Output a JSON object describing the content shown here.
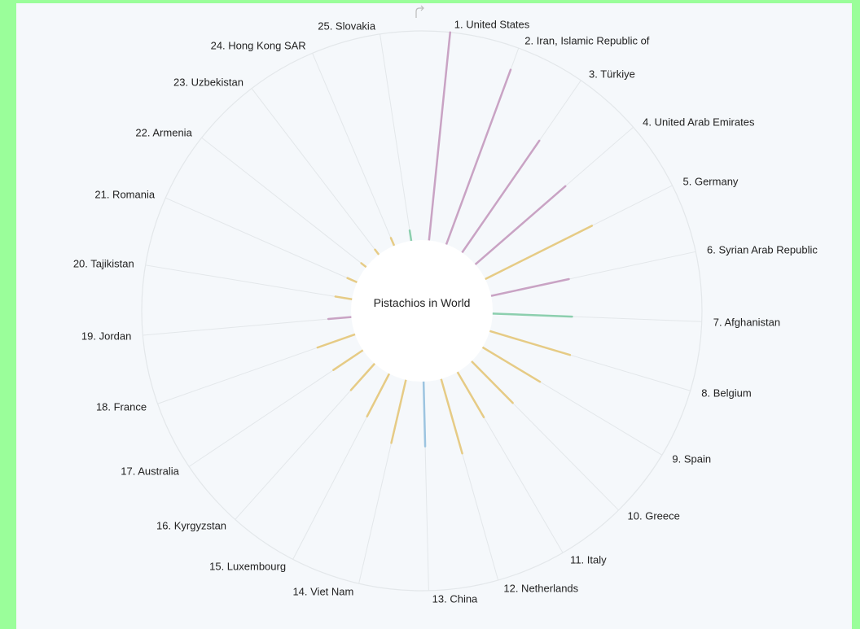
{
  "chart_data": {
    "type": "radial-bar",
    "title": "Pistachios in World",
    "categories": [
      "1. United States",
      "2. Iran, Islamic Republic of",
      "3. Türkiye",
      "4. United Arab Emirates",
      "5. Germany",
      "6. Syrian Arab Republic",
      "7. Afghanistan",
      "8. Belgium",
      "9. Spain",
      "10. Greece",
      "11. Italy",
      "12. Netherlands",
      "13. China",
      "14. Viet Nam",
      "15. Luxembourg",
      "16. Kyrgyzstan",
      "17. Australia",
      "18. France",
      "19. Jordan",
      "20. Tajikistan",
      "21. Romania",
      "22. Armenia",
      "23. Uzbekistan",
      "24. Hong Kong SAR",
      "25. Slovakia"
    ],
    "values": [
      100,
      89,
      65,
      57,
      57,
      38,
      38,
      40,
      32,
      28,
      25,
      37,
      31,
      31,
      23,
      17,
      17,
      19,
      11,
      8,
      5,
      3,
      3,
      4,
      5
    ],
    "colors": [
      "#c9a3c4",
      "#c9a3c4",
      "#c9a3c4",
      "#c9a3c4",
      "#e6cb85",
      "#c9a3c4",
      "#8ccfae",
      "#e6cb85",
      "#e6cb85",
      "#e6cb85",
      "#e6cb85",
      "#e6cb85",
      "#9cc4e0",
      "#e6cb85",
      "#e6cb85",
      "#e6cb85",
      "#e6cb85",
      "#e6cb85",
      "#c9a3c4",
      "#e6cb85",
      "#e6cb85",
      "#e6cb85",
      "#e6cb85",
      "#e6cb85",
      "#8ccfae"
    ]
  }
}
